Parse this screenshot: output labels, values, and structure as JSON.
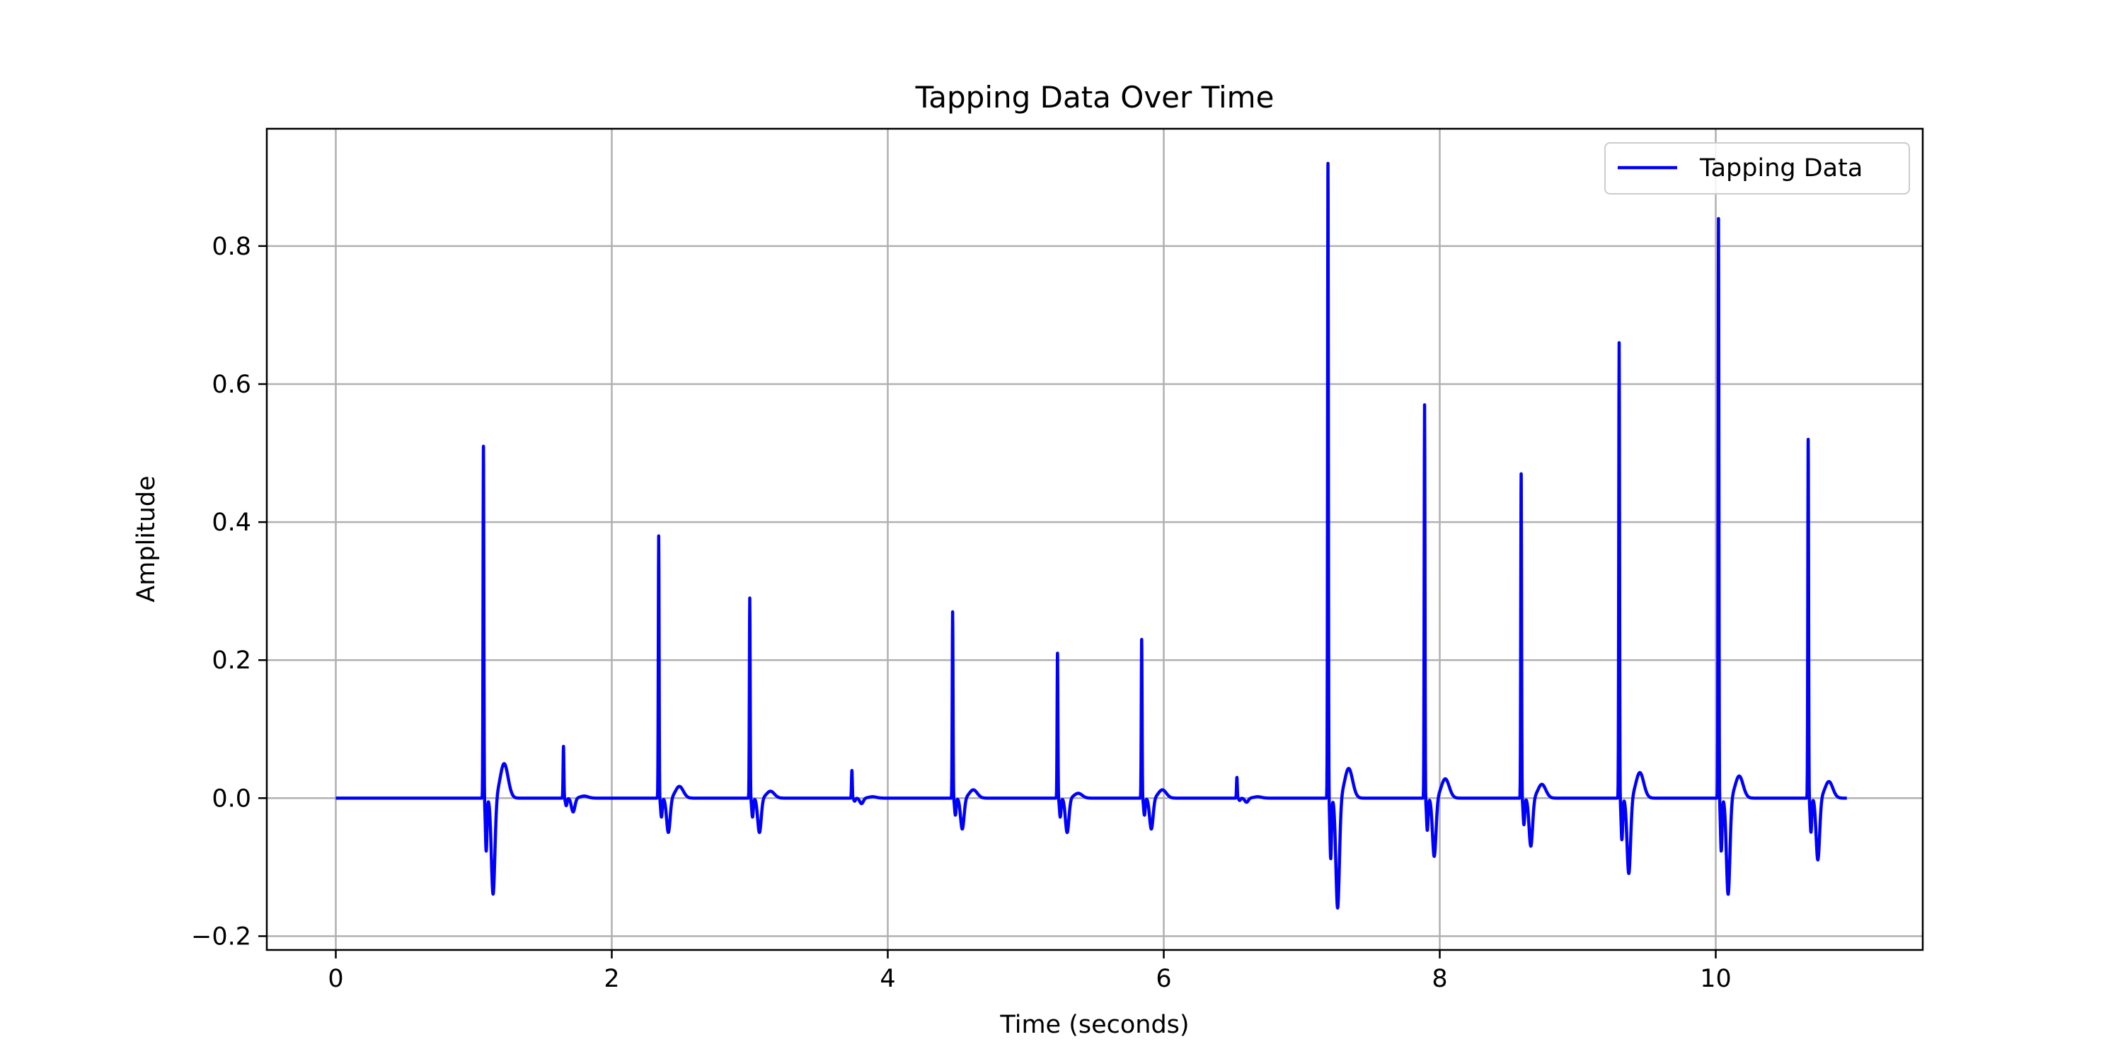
{
  "chart_data": {
    "type": "line",
    "title": "Tapping Data Over Time",
    "xlabel": "Time (seconds)",
    "ylabel": "Amplitude",
    "xlim": [
      -0.5,
      11.5
    ],
    "ylim": [
      -0.22,
      0.97
    ],
    "xticks": [
      0,
      2,
      4,
      6,
      8,
      10
    ],
    "xtick_labels": [
      "0",
      "2",
      "4",
      "6",
      "8",
      "10"
    ],
    "yticks": [
      -0.2,
      0.0,
      0.2,
      0.4,
      0.6,
      0.8
    ],
    "ytick_labels": [
      "−0.2",
      "0.0",
      "0.2",
      "0.4",
      "0.6",
      "0.8"
    ],
    "grid": true,
    "legend_position": "top-right",
    "colors": {
      "line": "#0000ff",
      "grid": "#b0b0b0",
      "axes": "#000000"
    },
    "series": [
      {
        "name": "Tapping Data",
        "x_range": [
          0,
          10.95
        ],
        "baseline": 0.0,
        "taps": [
          {
            "t": 1.07,
            "peak": 0.51,
            "dip": -0.14,
            "rebound": 0.05
          },
          {
            "t": 1.65,
            "peak": 0.075,
            "dip": -0.02,
            "rebound": 0.003
          },
          {
            "t": 2.34,
            "peak": 0.38,
            "dip": -0.05,
            "rebound": 0.017
          },
          {
            "t": 3.0,
            "peak": 0.29,
            "dip": -0.05,
            "rebound": 0.01
          },
          {
            "t": 3.74,
            "peak": 0.04,
            "dip": -0.008,
            "rebound": 0.002
          },
          {
            "t": 4.47,
            "peak": 0.27,
            "dip": -0.045,
            "rebound": 0.012
          },
          {
            "t": 5.23,
            "peak": 0.21,
            "dip": -0.05,
            "rebound": 0.007
          },
          {
            "t": 5.84,
            "peak": 0.23,
            "dip": -0.045,
            "rebound": 0.012
          },
          {
            "t": 6.53,
            "peak": 0.03,
            "dip": -0.006,
            "rebound": 0.002
          },
          {
            "t": 7.19,
            "peak": 0.92,
            "dip": -0.16,
            "rebound": 0.043
          },
          {
            "t": 7.89,
            "peak": 0.57,
            "dip": -0.085,
            "rebound": 0.028
          },
          {
            "t": 8.59,
            "peak": 0.47,
            "dip": -0.07,
            "rebound": 0.02
          },
          {
            "t": 9.3,
            "peak": 0.66,
            "dip": -0.11,
            "rebound": 0.037
          },
          {
            "t": 10.02,
            "peak": 0.84,
            "dip": -0.14,
            "rebound": 0.032
          },
          {
            "t": 10.67,
            "peak": 0.52,
            "dip": -0.09,
            "rebound": 0.024
          }
        ]
      }
    ]
  }
}
